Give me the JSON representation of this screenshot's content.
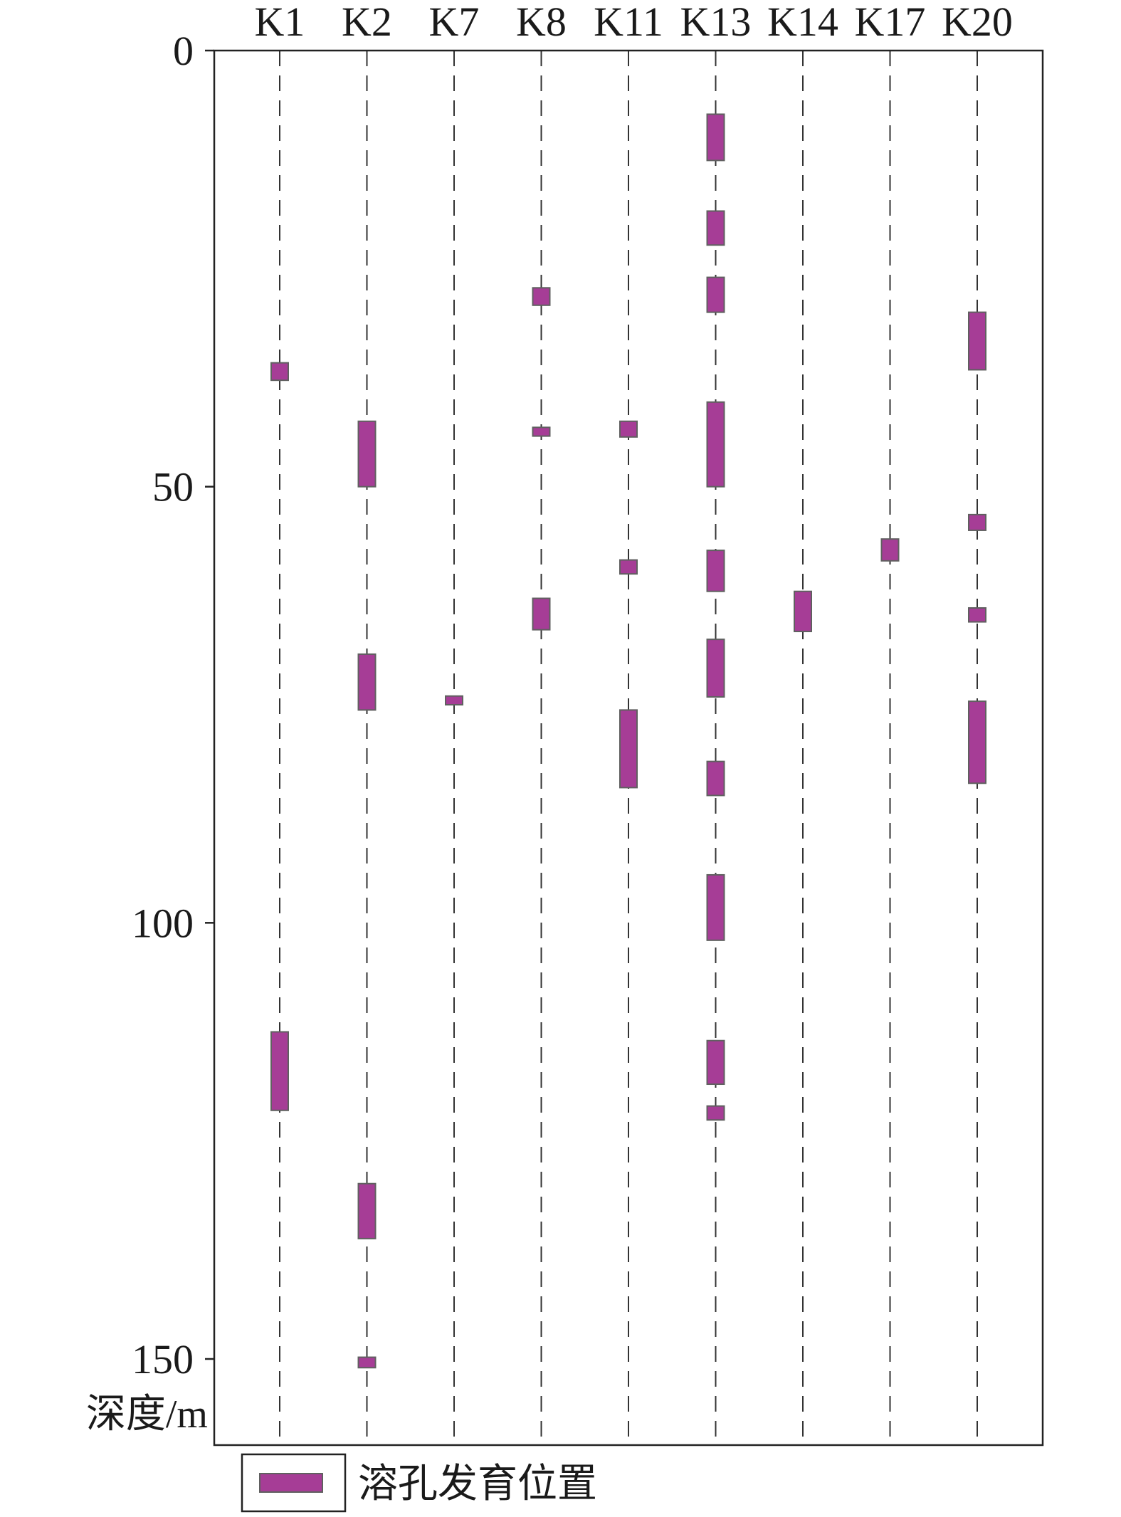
{
  "chart_data": {
    "type": "bar",
    "orientation": "vertical-intervals",
    "categories": [
      "K1",
      "K2",
      "K7",
      "K8",
      "K11",
      "K13",
      "K14",
      "K17",
      "K20"
    ],
    "ylabel": "深度/m",
    "yticks": [
      "0",
      "50",
      "100",
      "150"
    ],
    "ytick_values": [
      0,
      50,
      100,
      150
    ],
    "ylim": [
      0,
      160
    ],
    "y_inverted": true,
    "grid": "dashed vertical line per borehole",
    "legend": {
      "label": "溶孔发育位置",
      "placement": "bottom-left"
    },
    "colors": {
      "interval": "#a63d96",
      "interval_edge": "#606060",
      "axis": "#222222"
    },
    "series": [
      {
        "category": "K1",
        "intervals": [
          [
            35.8,
            37.8
          ],
          [
            112.5,
            121.5
          ]
        ]
      },
      {
        "category": "K2",
        "intervals": [
          [
            42.5,
            50.0
          ],
          [
            69.2,
            75.6
          ],
          [
            129.9,
            136.2
          ],
          [
            149.8,
            151.0
          ]
        ]
      },
      {
        "category": "K7",
        "intervals": [
          [
            74.0,
            75.0
          ]
        ]
      },
      {
        "category": "K8",
        "intervals": [
          [
            27.2,
            29.2
          ],
          [
            62.8,
            66.4
          ],
          [
            43.2,
            44.2
          ]
        ]
      },
      {
        "category": "K11",
        "intervals": [
          [
            42.5,
            44.3
          ],
          [
            58.4,
            60.0
          ],
          [
            75.6,
            84.5
          ]
        ]
      },
      {
        "category": "K13",
        "intervals": [
          [
            7.3,
            12.6
          ],
          [
            18.4,
            22.3
          ],
          [
            26.0,
            30.0
          ],
          [
            40.3,
            50.0
          ],
          [
            57.3,
            62.0
          ],
          [
            67.5,
            74.1
          ],
          [
            81.5,
            85.4
          ],
          [
            94.5,
            102.0
          ],
          [
            113.5,
            118.5
          ],
          [
            121.0,
            122.6
          ]
        ]
      },
      {
        "category": "K14",
        "intervals": [
          [
            62.0,
            66.6
          ]
        ]
      },
      {
        "category": "K17",
        "intervals": [
          [
            56.0,
            58.5
          ]
        ]
      },
      {
        "category": "K20",
        "intervals": [
          [
            30.0,
            36.6
          ],
          [
            53.2,
            55.0
          ],
          [
            63.9,
            65.5
          ],
          [
            74.6,
            84.0
          ]
        ]
      }
    ]
  }
}
